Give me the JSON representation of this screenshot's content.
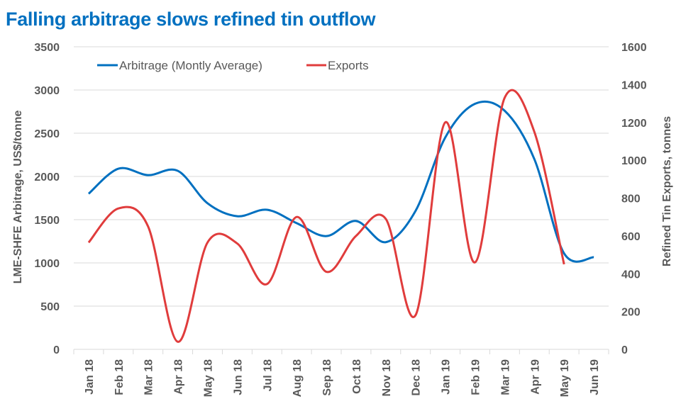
{
  "chart_data": {
    "type": "line",
    "title": "Falling arbitrage slows refined tin outflow",
    "categories": [
      "Jan 18",
      "Feb 18",
      "Mar 18",
      "Apr 18",
      "May 18",
      "Jun 18",
      "Jul 18",
      "Aug 18",
      "Sep 18",
      "Oct 18",
      "Nov 18",
      "Dec 18",
      "Jan 19",
      "Feb 19",
      "Mar 19",
      "Apr 19",
      "May 19",
      "Jun 19"
    ],
    "series": [
      {
        "name": "Arbitrage (Montly Average)",
        "axis": "left",
        "color": "#0070C0",
        "smooth": true,
        "values": [
          1800,
          2090,
          2015,
          2065,
          1690,
          1540,
          1615,
          1460,
          1310,
          1485,
          1240,
          1600,
          2450,
          2840,
          2760,
          2200,
          1110,
          1065
        ]
      },
      {
        "name": "Exports",
        "axis": "right",
        "color": "#E03C3C",
        "smooth": true,
        "values": [
          565,
          745,
          650,
          40,
          565,
          560,
          345,
          700,
          410,
          600,
          690,
          180,
          1200,
          460,
          1330,
          1150,
          450,
          null
        ]
      }
    ],
    "ylabel": "LME-SHFE Arbitrage, US$/tonne",
    "y2label": "Refined Tin Exports, tonnes",
    "xlabel": "",
    "ylim": [
      0,
      3500
    ],
    "y2lim": [
      0,
      1600
    ],
    "yticks": [
      0,
      500,
      1000,
      1500,
      2000,
      2500,
      3000,
      3500
    ],
    "y2ticks": [
      0,
      200,
      400,
      600,
      800,
      1000,
      1200,
      1400,
      1600
    ],
    "grid": true,
    "legend_position": "top-left"
  }
}
